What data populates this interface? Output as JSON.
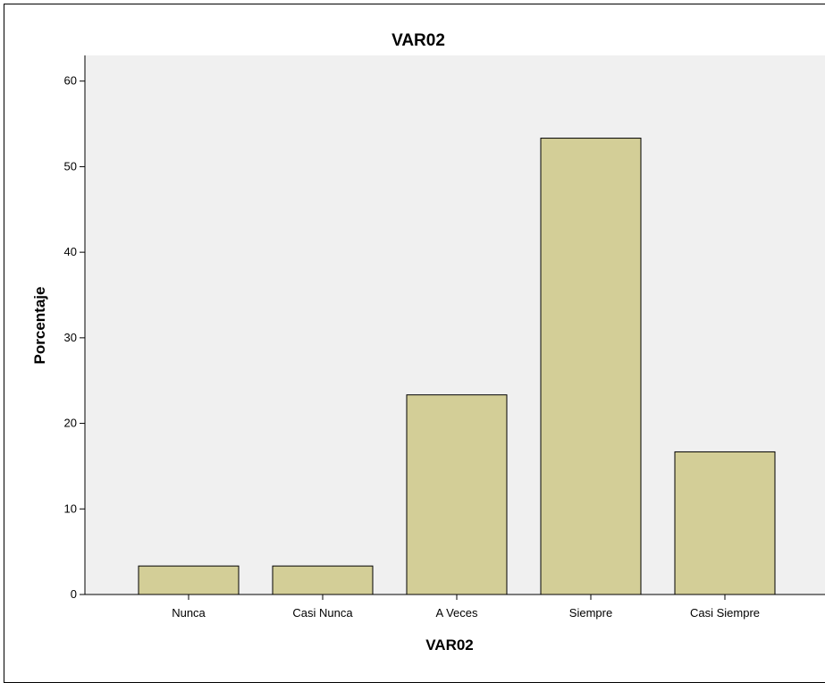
{
  "chart_data": {
    "type": "bar",
    "title": "VAR02",
    "xlabel": "VAR02",
    "ylabel": "Porcentaje",
    "categories": [
      "Nunca",
      "Casi Nunca",
      "A Veces",
      "Siempre",
      "Casi Siempre"
    ],
    "values": [
      3.33,
      3.33,
      23.33,
      53.33,
      16.67
    ],
    "ylim": [
      0,
      63
    ],
    "yticks": [
      0,
      10,
      20,
      30,
      40,
      50,
      60
    ],
    "grid": false,
    "colors": {
      "plot_background": "#f0f0f0",
      "bar_fill": "#d3ce97",
      "bar_stroke": "#000000"
    }
  }
}
